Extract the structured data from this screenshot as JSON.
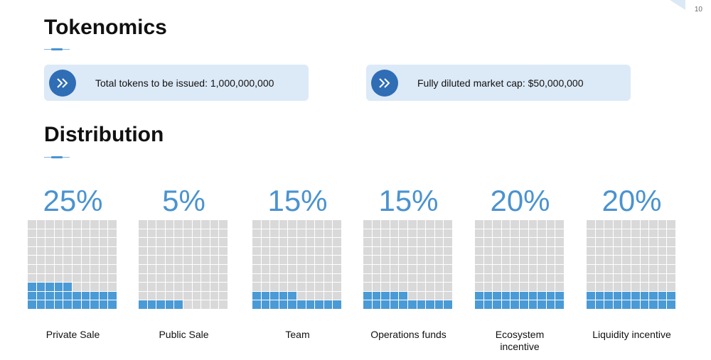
{
  "page": {
    "number": "10"
  },
  "tokenomics": {
    "title": "Tokenomics",
    "boxes": [
      {
        "icon": "double-chevron-right-icon",
        "text": "Total tokens to be issued: 1,000,000,000"
      },
      {
        "icon": "double-chevron-right-icon",
        "text": "Fully diluted market cap: $50,000,000"
      }
    ]
  },
  "distribution": {
    "title": "Distribution",
    "items": [
      {
        "percent_label": "25%",
        "value": 25,
        "label": "Private Sale"
      },
      {
        "percent_label": "5%",
        "value": 5,
        "label": "Public Sale"
      },
      {
        "percent_label": "15%",
        "value": 15,
        "label": "Team"
      },
      {
        "percent_label": "15%",
        "value": 15,
        "label": "Operations funds"
      },
      {
        "percent_label": "20%",
        "value": 20,
        "label": "Ecosystem incentive"
      },
      {
        "percent_label": "20%",
        "value": 20,
        "label": "Liquidity incentive"
      }
    ]
  },
  "colors": {
    "accent": "#4a93d0",
    "icon_bg": "#2f6db5",
    "box_bg": "#dce9f7",
    "cell_on": "#4a9ad6",
    "cell_off": "#d9d9d9"
  }
}
